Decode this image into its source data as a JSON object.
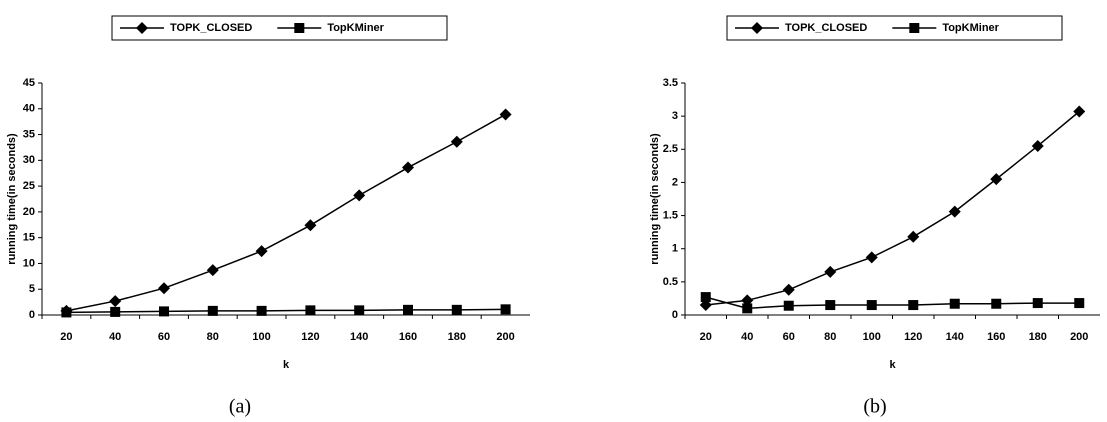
{
  "chart_data": [
    {
      "type": "line",
      "caption": "(a)",
      "x_label": "k",
      "y_label": "running time(in seconds)",
      "categories": [
        "20",
        "40",
        "60",
        "80",
        "100",
        "120",
        "140",
        "160",
        "180",
        "200"
      ],
      "ylim": [
        0,
        45
      ],
      "yticks": [
        0,
        5,
        10,
        15,
        20,
        25,
        30,
        35,
        40,
        45
      ],
      "series": [
        {
          "name": "TOPK_CLOSED",
          "color": "#000000",
          "marker": "diamond",
          "values": [
            0.8,
            2.7,
            5.2,
            8.7,
            12.4,
            17.4,
            23.2,
            28.6,
            33.6,
            38.9
          ]
        },
        {
          "name": "TopKMiner",
          "color": "#000000",
          "marker": "square",
          "values": [
            0.5,
            0.6,
            0.7,
            0.8,
            0.8,
            0.9,
            0.9,
            1.0,
            1.0,
            1.1
          ]
        }
      ]
    },
    {
      "type": "line",
      "caption": "(b)",
      "x_label": "k",
      "y_label": "running time(in seconds)",
      "categories": [
        "20",
        "40",
        "60",
        "80",
        "100",
        "120",
        "140",
        "160",
        "180",
        "200"
      ],
      "ylim": [
        0,
        3.5
      ],
      "yticks": [
        0,
        0.5,
        1,
        1.5,
        2,
        2.5,
        3,
        3.5
      ],
      "series": [
        {
          "name": "TOPK_CLOSED",
          "color": "#000000",
          "marker": "diamond",
          "values": [
            0.15,
            0.22,
            0.38,
            0.65,
            0.87,
            1.18,
            1.56,
            2.05,
            2.55,
            3.07
          ]
        },
        {
          "name": "TopKMiner",
          "color": "#000000",
          "marker": "square",
          "values": [
            0.27,
            0.1,
            0.14,
            0.15,
            0.15,
            0.15,
            0.17,
            0.17,
            0.18,
            0.18
          ]
        }
      ]
    }
  ]
}
